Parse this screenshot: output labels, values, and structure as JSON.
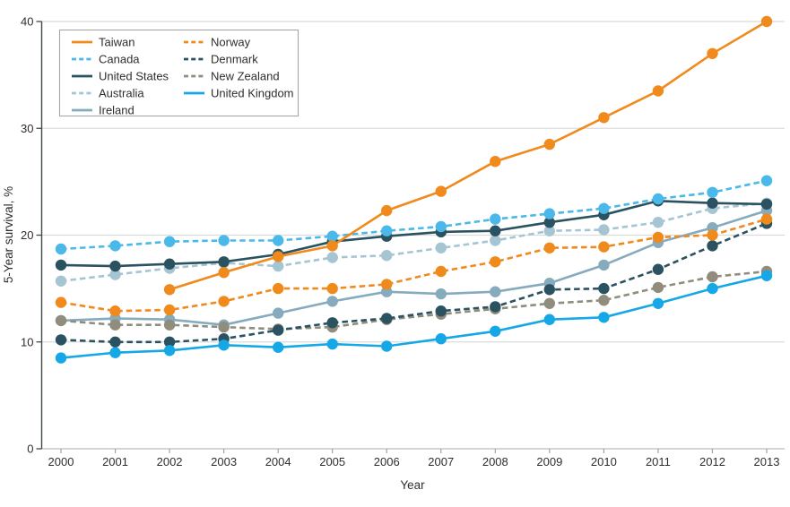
{
  "figure": {
    "type_hint": "line chart of cancer survival trends by country"
  },
  "chart_data": {
    "type": "line",
    "title": "",
    "xlabel": "Year",
    "ylabel": "5-Year survival, %",
    "x": [
      2000,
      2001,
      2002,
      2003,
      2004,
      2005,
      2006,
      2007,
      2008,
      2009,
      2010,
      2011,
      2012,
      2013
    ],
    "xtick_labels": [
      "2000",
      "2001",
      "2002",
      "2003",
      "2004",
      "2005",
      "2006",
      "2007",
      "2008",
      "2009",
      "2010",
      "2011",
      "2012",
      "2013"
    ],
    "ylim": [
      0,
      40
    ],
    "yticks": [
      0,
      10,
      20,
      30,
      40
    ],
    "grid": "horizontal",
    "legend_position": "top-left",
    "series": [
      {
        "name": "Taiwan",
        "color": "#F08A1D",
        "line": "solid",
        "values": [
          null,
          null,
          14.9,
          16.5,
          18.0,
          19.0,
          22.3,
          24.1,
          26.9,
          28.5,
          31.0,
          33.5,
          37.0,
          40.0
        ]
      },
      {
        "name": "Canada",
        "color": "#4AB8E9",
        "line": "dashed",
        "values": [
          18.7,
          19.0,
          19.4,
          19.5,
          19.5,
          19.9,
          20.4,
          20.8,
          21.5,
          22.0,
          22.5,
          23.4,
          24.0,
          25.1
        ]
      },
      {
        "name": "United States",
        "color": "#2A5261",
        "line": "solid",
        "values": [
          17.2,
          17.1,
          17.3,
          17.5,
          18.2,
          19.4,
          19.9,
          20.3,
          20.4,
          21.2,
          21.9,
          23.2,
          23.0,
          22.9
        ]
      },
      {
        "name": "Australia",
        "color": "#A6C5D3",
        "line": "dashed",
        "values": [
          15.7,
          16.3,
          16.9,
          17.4,
          17.1,
          17.9,
          18.1,
          18.8,
          19.5,
          20.4,
          20.5,
          21.2,
          22.5,
          23.0
        ]
      },
      {
        "name": "Ireland",
        "color": "#85ABBD",
        "line": "solid",
        "values": [
          12.0,
          12.2,
          12.1,
          11.6,
          12.7,
          13.8,
          14.7,
          14.5,
          14.7,
          15.5,
          17.2,
          19.3,
          20.7,
          22.3
        ]
      },
      {
        "name": "Norway",
        "color": "#F08A1D",
        "line": "dashed",
        "values": [
          13.7,
          12.9,
          13.0,
          13.8,
          15.0,
          15.0,
          15.4,
          16.6,
          17.5,
          18.8,
          18.9,
          19.8,
          20.0,
          21.5
        ]
      },
      {
        "name": "Denmark",
        "color": "#2A5261",
        "line": "dashed",
        "values": [
          10.2,
          10.0,
          10.0,
          10.3,
          11.1,
          11.8,
          12.2,
          12.9,
          13.3,
          14.9,
          15.0,
          16.8,
          19.0,
          21.1
        ]
      },
      {
        "name": "New Zealand",
        "color": "#908D7D",
        "line": "dashed",
        "values": [
          12.0,
          11.6,
          11.6,
          11.4,
          11.2,
          11.4,
          12.1,
          12.6,
          13.1,
          13.6,
          13.9,
          15.1,
          16.1,
          16.6
        ]
      },
      {
        "name": "United Kingdom",
        "color": "#16A8E6",
        "line": "solid",
        "values": [
          8.5,
          9.0,
          9.2,
          9.7,
          9.5,
          9.8,
          9.6,
          10.3,
          11.0,
          12.1,
          12.3,
          13.6,
          15.0,
          16.2
        ]
      }
    ],
    "colors": {
      "grid": "#DBDBDB",
      "x_axis": "#C4C8CA",
      "x_tick": "#9EA3A6",
      "y_axis": "#42484B",
      "text": "#2E2E2E",
      "legend_border": "#A7A7A7"
    }
  }
}
